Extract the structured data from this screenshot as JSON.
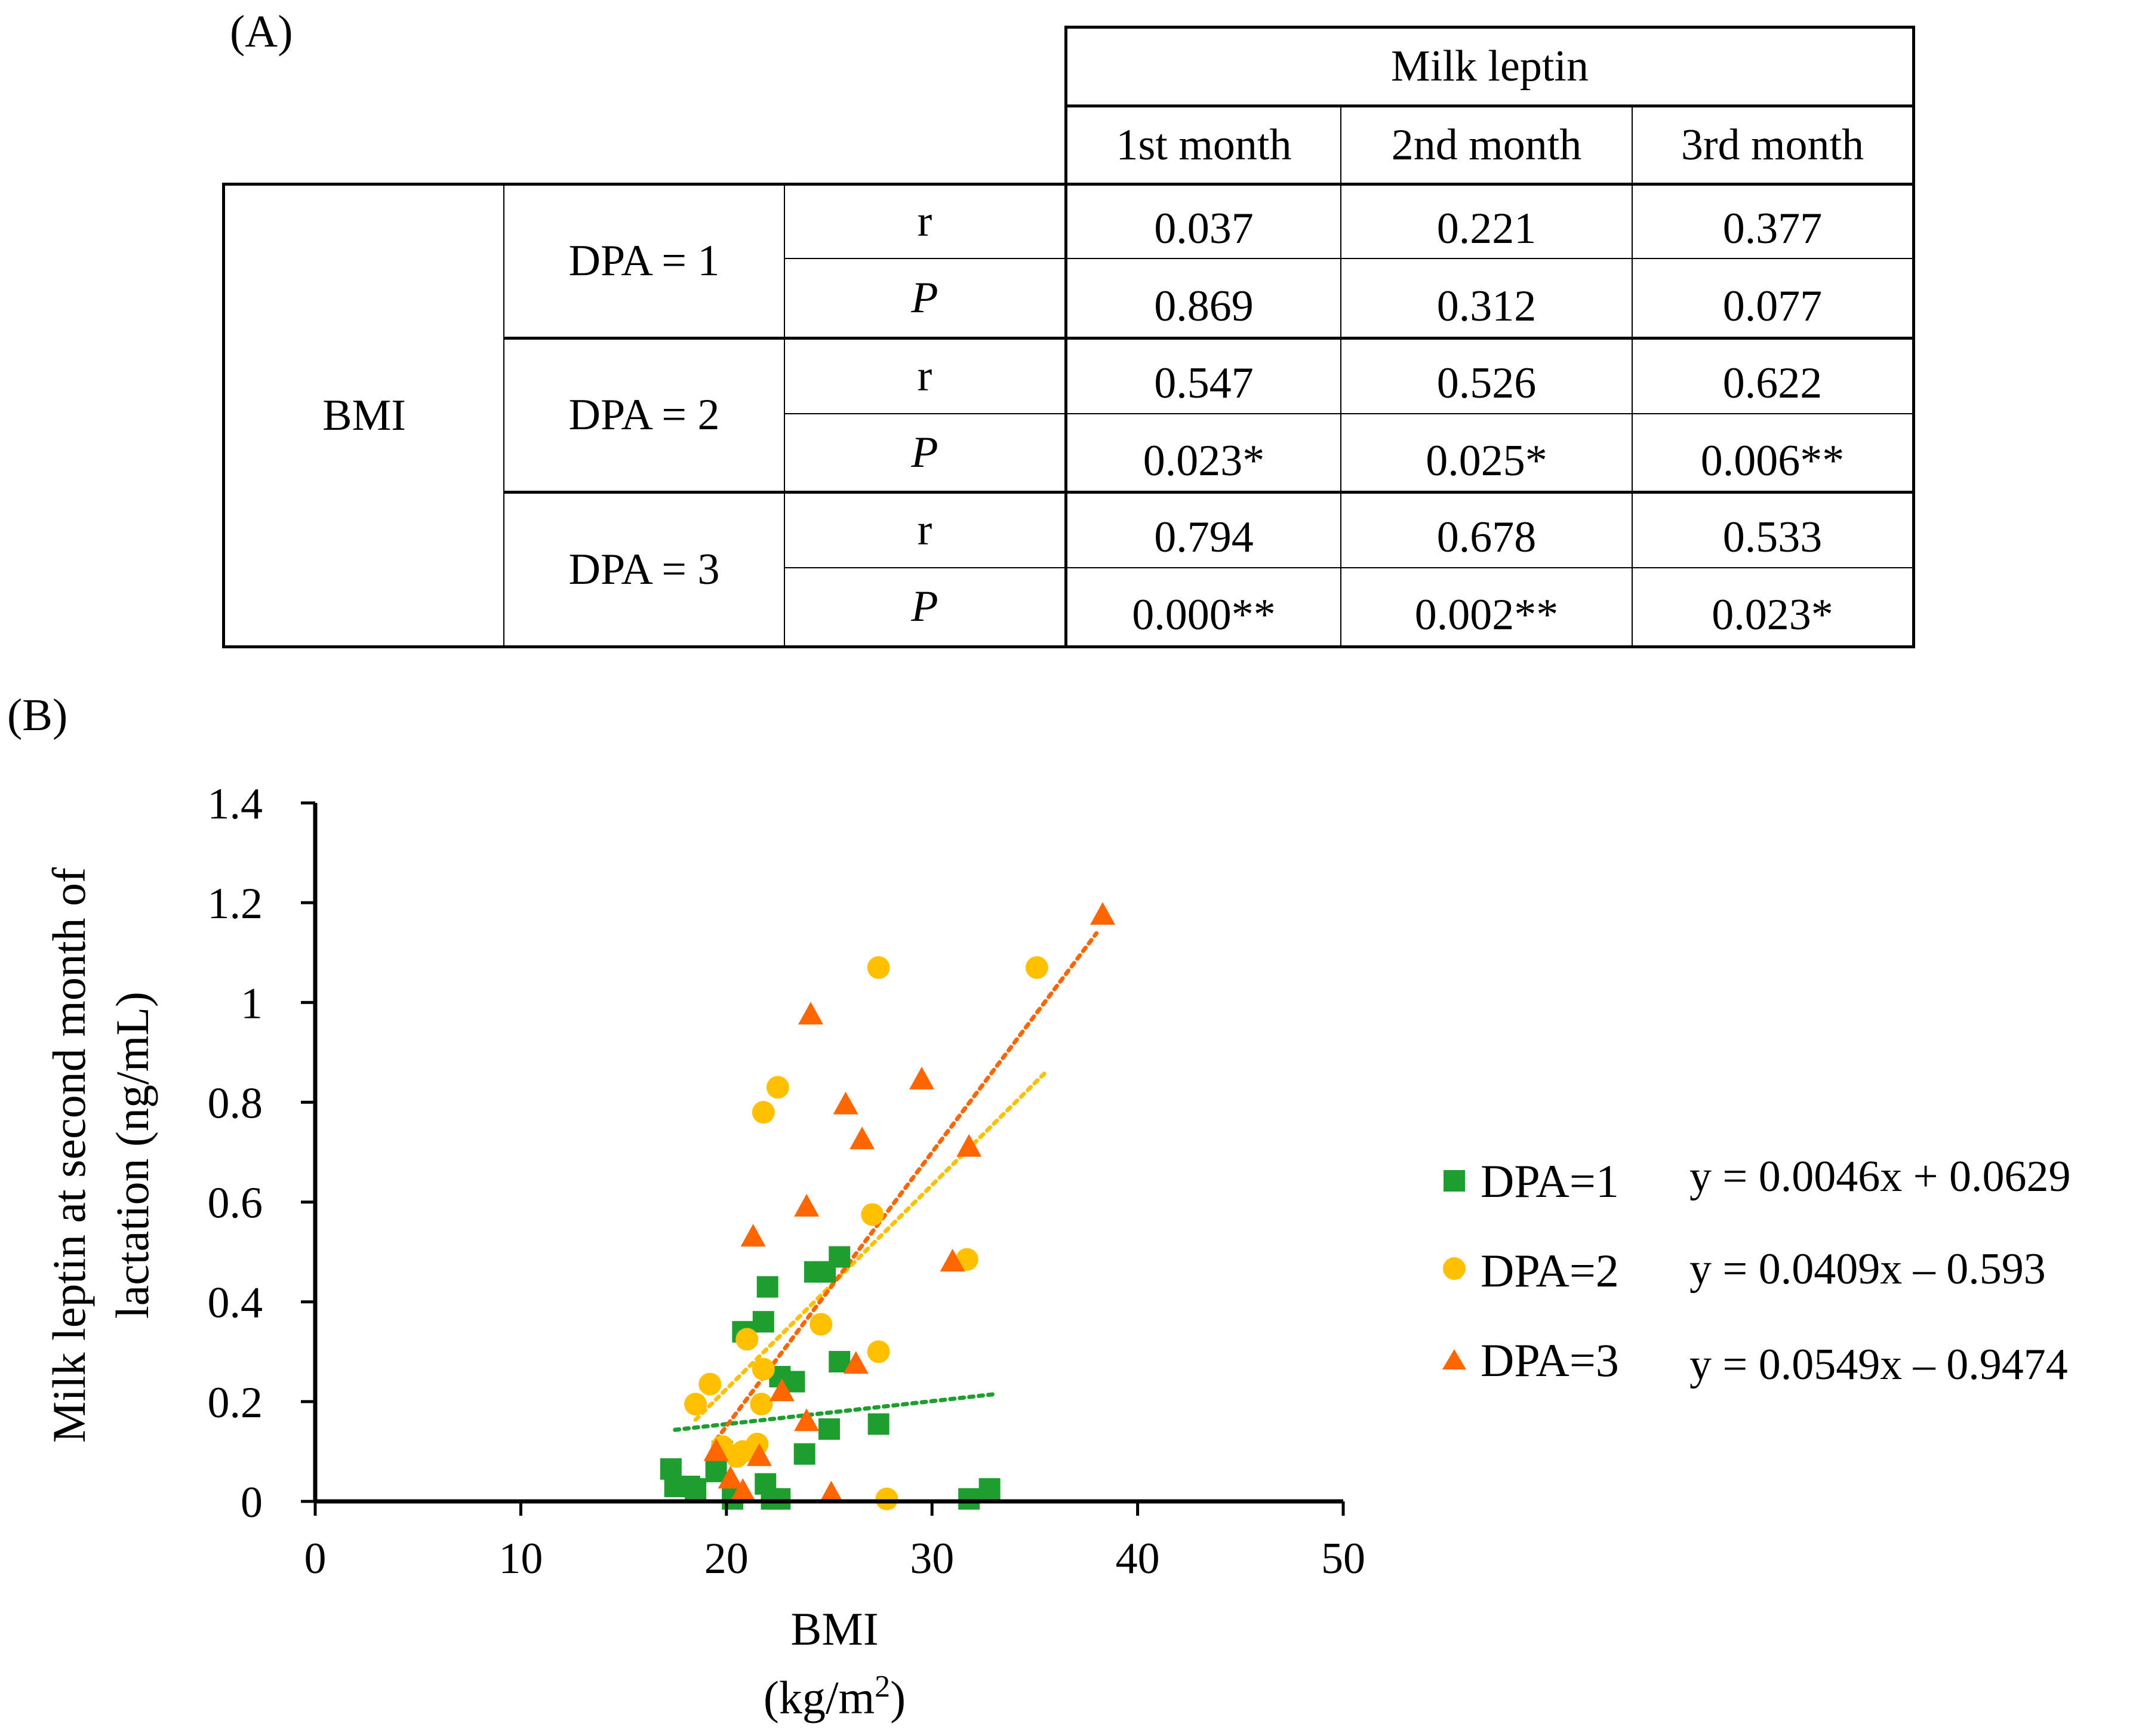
{
  "panel_a_label": "(A)",
  "panel_b_label": "(B)",
  "table": {
    "group_header": "Milk leptin",
    "columns": [
      "1st month",
      "2nd month",
      "3rd month"
    ],
    "row_group": "BMI",
    "rows": [
      {
        "dpa": "DPA = 1",
        "r_label": "r",
        "p_label": "P",
        "r": [
          "0.037",
          "0.221",
          "0.377"
        ],
        "p": [
          "0.869",
          "0.312",
          "0.077"
        ]
      },
      {
        "dpa": "DPA = 2",
        "r_label": "r",
        "p_label": "P",
        "r": [
          "0.547",
          "0.526",
          "0.622"
        ],
        "p": [
          "0.023*",
          "0.025*",
          "0.006**"
        ]
      },
      {
        "dpa": "DPA = 3",
        "r_label": "r",
        "p_label": "P",
        "r": [
          "0.794",
          "0.678",
          "0.533"
        ],
        "p": [
          "0.000**",
          "0.002**",
          "0.023*"
        ]
      }
    ]
  },
  "chart_data": {
    "type": "scatter",
    "title": "",
    "xlabel": "BMI",
    "xlabel_unit": "(kg/m",
    "xlabel_sup": "2",
    "xlabel_close": ")",
    "ylabel_line1": "Milk leptin at second month of",
    "ylabel_line2": "lactation (ng/mL)",
    "xlim": [
      0,
      50
    ],
    "ylim": [
      0,
      1.4
    ],
    "x_ticks": [
      "0",
      "10",
      "20",
      "30",
      "40",
      "50"
    ],
    "y_ticks": [
      "0",
      "0.2",
      "0.4",
      "0.6",
      "0.8",
      "1",
      "1.2",
      "1.4"
    ],
    "legend_position": "right",
    "series": [
      {
        "name": "DPA=1",
        "marker": "square",
        "color": "#1e9e2e",
        "equation": "y = 0.0046x + 0.0629",
        "trend": {
          "slope": 0.0046,
          "intercept": 0.0629,
          "x_range": [
            17.5,
            33
          ]
        },
        "points": [
          [
            17.3,
            0.065
          ],
          [
            17.5,
            0.03
          ],
          [
            18.2,
            0.03
          ],
          [
            18.5,
            0.025
          ],
          [
            19.5,
            0.06
          ],
          [
            19.8,
            0.1
          ],
          [
            20.3,
            0.005
          ],
          [
            20.8,
            0.34
          ],
          [
            21.8,
            0.36
          ],
          [
            22.0,
            0.43
          ],
          [
            21.9,
            0.035
          ],
          [
            22.2,
            0.005
          ],
          [
            22.6,
            0.005
          ],
          [
            22.6,
            0.25
          ],
          [
            23.3,
            0.24
          ],
          [
            23.8,
            0.095
          ],
          [
            24.3,
            0.46
          ],
          [
            24.8,
            0.46
          ],
          [
            25.0,
            0.145
          ],
          [
            25.5,
            0.49
          ],
          [
            25.5,
            0.28
          ],
          [
            27.4,
            0.155
          ],
          [
            31.8,
            0.005
          ],
          [
            32.8,
            0.025
          ]
        ]
      },
      {
        "name": "DPA=2",
        "marker": "circle",
        "color": "#ffc000",
        "equation": "y = 0.0409x – 0.593",
        "trend": {
          "slope": 0.0409,
          "intercept": -0.593,
          "x_range": [
            18.5,
            35.5
          ]
        },
        "points": [
          [
            18.5,
            0.195
          ],
          [
            19.2,
            0.235
          ],
          [
            19.8,
            0.11
          ],
          [
            20.5,
            0.09
          ],
          [
            20.8,
            0.1
          ],
          [
            21.0,
            0.325
          ],
          [
            21.5,
            0.115
          ],
          [
            21.8,
            0.265
          ],
          [
            21.7,
            0.195
          ],
          [
            21.8,
            0.78
          ],
          [
            22.5,
            0.83
          ],
          [
            24.6,
            0.355
          ],
          [
            27.1,
            0.575
          ],
          [
            27.4,
            1.07
          ],
          [
            27.4,
            0.3
          ],
          [
            27.8,
            0.005
          ],
          [
            31.7,
            0.485
          ],
          [
            35.1,
            1.07
          ]
        ]
      },
      {
        "name": "DPA=3",
        "marker": "triangle",
        "color": "#ff6600",
        "equation": "y = 0.0549x – 0.9474",
        "trend": {
          "slope": 0.0549,
          "intercept": -0.9474,
          "x_range": [
            19.5,
            38
          ]
        },
        "points": [
          [
            19.5,
            0.1
          ],
          [
            20.2,
            0.045
          ],
          [
            20.8,
            0.02
          ],
          [
            21.3,
            0.53
          ],
          [
            21.6,
            0.09
          ],
          [
            22.7,
            0.22
          ],
          [
            23.9,
            0.59
          ],
          [
            23.9,
            0.16
          ],
          [
            24.1,
            0.975
          ],
          [
            25.1,
            0.015
          ],
          [
            25.8,
            0.795
          ],
          [
            26.3,
            0.275
          ],
          [
            26.6,
            0.725
          ],
          [
            29.5,
            0.845
          ],
          [
            31.0,
            0.48
          ],
          [
            31.8,
            0.71
          ],
          [
            38.3,
            1.175
          ]
        ]
      }
    ]
  }
}
